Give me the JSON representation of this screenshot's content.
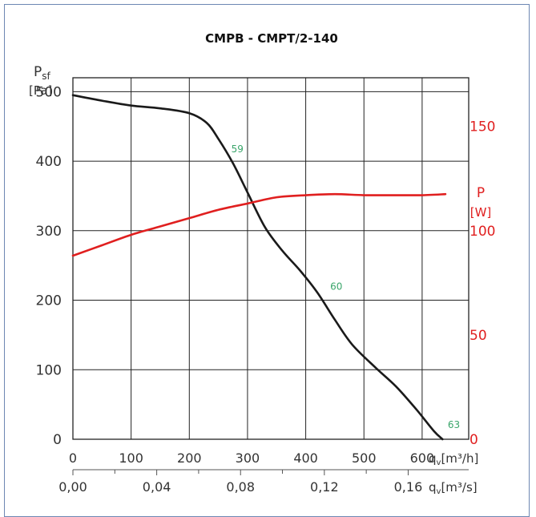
{
  "chart_data": {
    "type": "line",
    "title": "CMPB - CMPT/2-140",
    "y_left_label": {
      "main": "P",
      "sub": "sf",
      "unit": "[Pa]"
    },
    "y_right_label": {
      "main": "P",
      "unit": "[W]"
    },
    "x_label_top": {
      "main": "q",
      "sub": "v",
      "unit": "[m³/h]"
    },
    "x_label_bottom": {
      "main": "q",
      "sub": "v",
      "unit": "[m³/s]"
    },
    "xlim_m3h": [
      0,
      680
    ],
    "ylim_pa": [
      0,
      520
    ],
    "ylim_w": [
      0,
      173.3
    ],
    "x_ticks_m3h": [
      0,
      100,
      200,
      300,
      400,
      500,
      600
    ],
    "x_ticks_m3s": [
      {
        "value": 0.0,
        "label": "0,00"
      },
      {
        "value": 0.04,
        "label": "0,04"
      },
      {
        "value": 0.08,
        "label": "0,08"
      },
      {
        "value": 0.12,
        "label": "0,12"
      },
      {
        "value": 0.16,
        "label": "0,16"
      }
    ],
    "x_minor_ticks_m3s": [
      0.02,
      0.06,
      0.1,
      0.14
    ],
    "y_ticks_pa": [
      0,
      100,
      200,
      300,
      400,
      500
    ],
    "y_ticks_w": [
      0,
      50,
      100,
      150
    ],
    "grid": true,
    "series": [
      {
        "axis": "left",
        "color": "#1a1a1a",
        "points": [
          [
            0,
            495
          ],
          [
            50,
            487
          ],
          [
            100,
            480
          ],
          [
            150,
            476
          ],
          [
            200,
            469
          ],
          [
            230,
            455
          ],
          [
            250,
            432
          ],
          [
            275,
            397
          ],
          [
            300,
            355
          ],
          [
            330,
            305
          ],
          [
            360,
            271
          ],
          [
            390,
            243
          ],
          [
            420,
            211
          ],
          [
            450,
            172
          ],
          [
            480,
            136
          ],
          [
            520,
            103
          ],
          [
            555,
            76
          ],
          [
            590,
            43
          ],
          [
            620,
            12
          ],
          [
            635,
            0
          ]
        ]
      },
      {
        "axis": "right",
        "color": "#e01f1f",
        "points": [
          [
            0,
            88
          ],
          [
            50,
            93
          ],
          [
            100,
            98
          ],
          [
            150,
            102
          ],
          [
            200,
            106
          ],
          [
            250,
            110
          ],
          [
            300,
            113
          ],
          [
            350,
            116
          ],
          [
            400,
            117
          ],
          [
            450,
            117.5
          ],
          [
            500,
            117
          ],
          [
            550,
            117
          ],
          [
            600,
            117
          ],
          [
            640,
            117.5
          ]
        ]
      }
    ],
    "annotations": [
      {
        "text": "59",
        "x": 272,
        "y": 413,
        "color": "#3aa56a"
      },
      {
        "text": "60",
        "x": 442,
        "y": 215,
        "color": "#3aa56a"
      },
      {
        "text": "63",
        "x": 644,
        "y": 16,
        "color": "#3aa56a"
      }
    ]
  }
}
